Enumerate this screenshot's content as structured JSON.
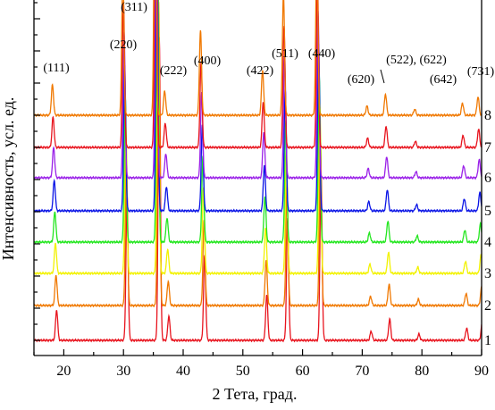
{
  "chart_data": {
    "type": "line",
    "title": "",
    "xlabel": "2 Тета, град.",
    "ylabel": "Интенсивность, усл. ед.",
    "xlim": [
      15,
      90
    ],
    "x_ticks": [
      "20",
      "30",
      "40",
      "50",
      "60",
      "70",
      "80",
      "90"
    ],
    "y_tick_labels": false,
    "grid": false,
    "legend": "none",
    "peaks": [
      {
        "x": 18.3,
        "label": "(111)",
        "rel": 0.1
      },
      {
        "x": 30.1,
        "label": "(220)",
        "rel": 0.48
      },
      {
        "x": 35.5,
        "label": "(311)",
        "rel": 1.0
      },
      {
        "x": 37.1,
        "label": "(222)",
        "rel": 0.08
      },
      {
        "x": 43.1,
        "label": "(400)",
        "rel": 0.28
      },
      {
        "x": 53.5,
        "label": "(422)",
        "rel": 0.15
      },
      {
        "x": 57.0,
        "label": "(511)",
        "rel": 0.4
      },
      {
        "x": 62.6,
        "label": "(440)",
        "rel": 0.55
      },
      {
        "x": 71.0,
        "label": "(620)",
        "rel": 0.03
      },
      {
        "x": 74.1,
        "label": "(522), (622)",
        "rel": 0.07
      },
      {
        "x": 79.0,
        "label": "",
        "rel": 0.02
      },
      {
        "x": 87.0,
        "label": "(642)",
        "rel": 0.04
      },
      {
        "x": 89.6,
        "label": "(731)",
        "rel": 0.06
      }
    ],
    "series": [
      {
        "name": "1",
        "color": "#e8141e",
        "shift": 0.5
      },
      {
        "name": "2",
        "color": "#f07800",
        "shift": 0.4
      },
      {
        "name": "3",
        "color": "#f2f200",
        "shift": 0.3
      },
      {
        "name": "4",
        "color": "#22e61e",
        "shift": 0.2
      },
      {
        "name": "5",
        "color": "#0a14e6",
        "shift": 0.1
      },
      {
        "name": "6",
        "color": "#9a20e8",
        "shift": 0.0
      },
      {
        "name": "7",
        "color": "#e8141e",
        "shift": -0.1
      },
      {
        "name": "8",
        "color": "#f07800",
        "shift": -0.2
      }
    ]
  }
}
